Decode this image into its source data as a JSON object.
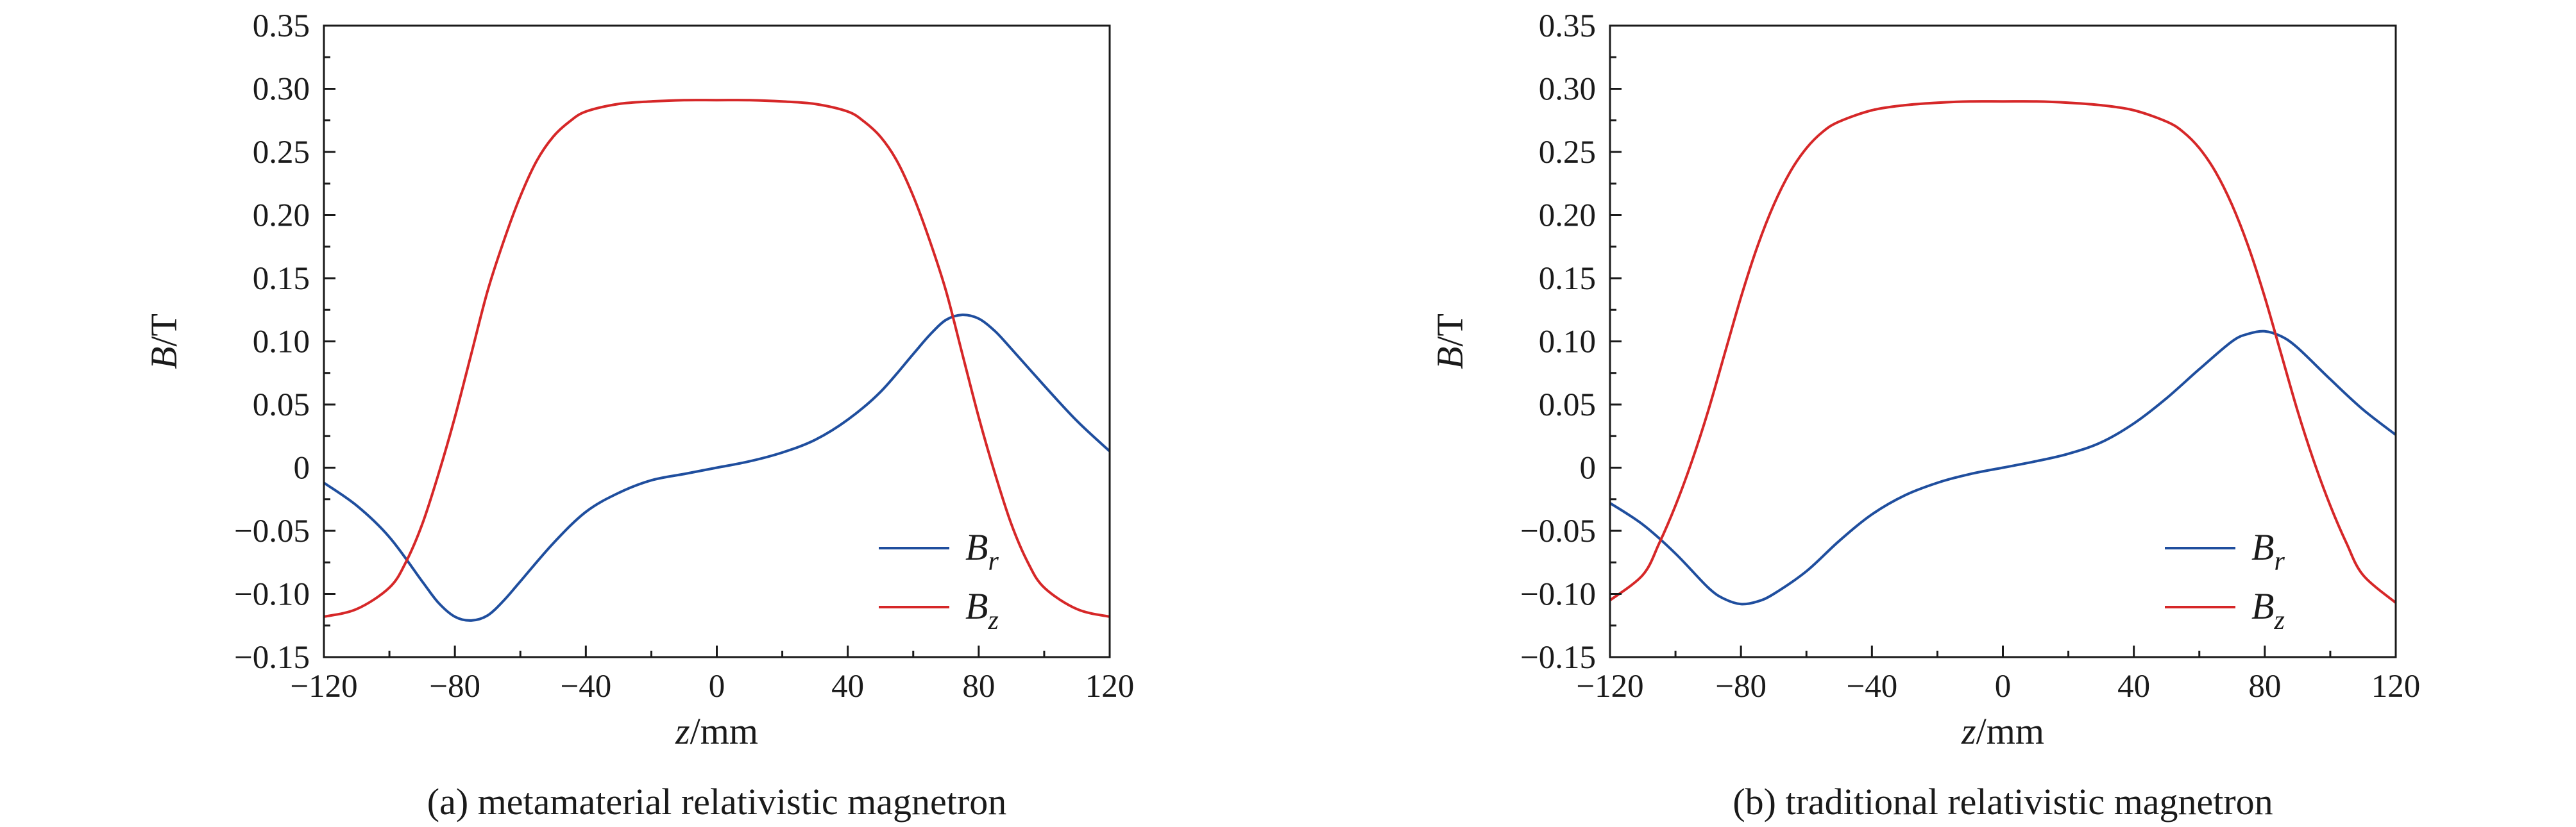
{
  "chart_data": [
    {
      "type": "line",
      "caption": "(a) metamaterial relativistic magnetron",
      "xlabel": "z/mm",
      "xlabel_var": "z",
      "xlabel_unit": "/mm",
      "ylabel": "B/T",
      "ylabel_var": "B",
      "ylabel_unit": "/T",
      "xlim": [
        -120,
        120
      ],
      "ylim": [
        -0.15,
        0.35
      ],
      "xticks": [
        "−120",
        "−80",
        "−40",
        "0",
        "40",
        "80",
        "120"
      ],
      "yticks": [
        "−0.15",
        "−0.10",
        "−0.05",
        "0",
        "0.05",
        "0.10",
        "0.15",
        "0.20",
        "0.25",
        "0.30",
        "0.35"
      ],
      "legend_position": "lower-right",
      "series": [
        {
          "name": "Br",
          "label_base": "B",
          "label_sub": "r",
          "color": "#1f4e9e",
          "x": [
            -120,
            -110,
            -100,
            -90,
            -85,
            -80,
            -75,
            -70,
            -65,
            -60,
            -50,
            -40,
            -30,
            -20,
            -10,
            0,
            10,
            20,
            30,
            40,
            50,
            60,
            65,
            70,
            75,
            80,
            85,
            90,
            100,
            110,
            120
          ],
          "y": [
            -0.012,
            -0.03,
            -0.055,
            -0.09,
            -0.107,
            -0.118,
            -0.121,
            -0.117,
            -0.105,
            -0.09,
            -0.06,
            -0.035,
            -0.02,
            -0.01,
            -0.005,
            0.0,
            0.005,
            0.012,
            0.022,
            0.038,
            0.06,
            0.09,
            0.105,
            0.117,
            0.121,
            0.118,
            0.108,
            0.094,
            0.065,
            0.037,
            0.013
          ]
        },
        {
          "name": "Bz",
          "label_base": "B",
          "label_sub": "z",
          "color": "#d62728",
          "x": [
            -120,
            -110,
            -100,
            -95,
            -90,
            -85,
            -80,
            -75,
            -70,
            -65,
            -60,
            -55,
            -50,
            -45,
            -40,
            -30,
            -20,
            -10,
            0,
            10,
            20,
            30,
            40,
            45,
            50,
            55,
            60,
            65,
            70,
            75,
            80,
            85,
            90,
            95,
            100,
            110,
            120
          ],
          "y": [
            -0.118,
            -0.112,
            -0.095,
            -0.075,
            -0.045,
            -0.005,
            0.04,
            0.09,
            0.14,
            0.18,
            0.215,
            0.243,
            0.262,
            0.274,
            0.282,
            0.288,
            0.29,
            0.291,
            0.291,
            0.291,
            0.29,
            0.288,
            0.282,
            0.274,
            0.262,
            0.243,
            0.215,
            0.18,
            0.14,
            0.09,
            0.04,
            -0.005,
            -0.045,
            -0.075,
            -0.095,
            -0.112,
            -0.118
          ]
        }
      ]
    },
    {
      "type": "line",
      "caption": "(b) traditional relativistic magnetron",
      "xlabel": "z/mm",
      "xlabel_var": "z",
      "xlabel_unit": "/mm",
      "ylabel": "B/T",
      "ylabel_var": "B",
      "ylabel_unit": "/T",
      "xlim": [
        -120,
        120
      ],
      "ylim": [
        -0.15,
        0.35
      ],
      "xticks": [
        "−120",
        "−80",
        "−40",
        "0",
        "40",
        "80",
        "120"
      ],
      "yticks": [
        "−0.15",
        "−0.10",
        "−0.05",
        "0",
        "0.05",
        "0.10",
        "0.15",
        "0.20",
        "0.25",
        "0.30",
        "0.35"
      ],
      "legend_position": "lower-right",
      "series": [
        {
          "name": "Br",
          "label_base": "B",
          "label_sub": "r",
          "color": "#1f4e9e",
          "x": [
            -120,
            -110,
            -100,
            -90,
            -85,
            -80,
            -75,
            -70,
            -60,
            -50,
            -40,
            -30,
            -20,
            -10,
            0,
            10,
            20,
            30,
            40,
            50,
            60,
            70,
            75,
            80,
            85,
            90,
            100,
            110,
            120
          ],
          "y": [
            -0.028,
            -0.045,
            -0.068,
            -0.095,
            -0.104,
            -0.108,
            -0.106,
            -0.1,
            -0.082,
            -0.058,
            -0.037,
            -0.022,
            -0.012,
            -0.005,
            0.0,
            0.005,
            0.011,
            0.02,
            0.035,
            0.055,
            0.078,
            0.1,
            0.106,
            0.108,
            0.104,
            0.095,
            0.07,
            0.046,
            0.026
          ]
        },
        {
          "name": "Bz",
          "label_base": "B",
          "label_sub": "z",
          "color": "#d62728",
          "x": [
            -120,
            -110,
            -105,
            -100,
            -95,
            -90,
            -85,
            -80,
            -75,
            -70,
            -65,
            -60,
            -55,
            -50,
            -40,
            -30,
            -20,
            -10,
            0,
            10,
            20,
            30,
            40,
            50,
            55,
            60,
            65,
            70,
            75,
            80,
            85,
            90,
            95,
            100,
            105,
            110,
            120
          ],
          "y": [
            -0.105,
            -0.085,
            -0.06,
            -0.03,
            0.005,
            0.045,
            0.09,
            0.135,
            0.175,
            0.208,
            0.234,
            0.253,
            0.266,
            0.274,
            0.283,
            0.287,
            0.289,
            0.29,
            0.29,
            0.29,
            0.289,
            0.287,
            0.283,
            0.274,
            0.266,
            0.253,
            0.234,
            0.208,
            0.175,
            0.135,
            0.09,
            0.045,
            0.005,
            -0.03,
            -0.06,
            -0.085,
            -0.107
          ]
        }
      ]
    }
  ]
}
